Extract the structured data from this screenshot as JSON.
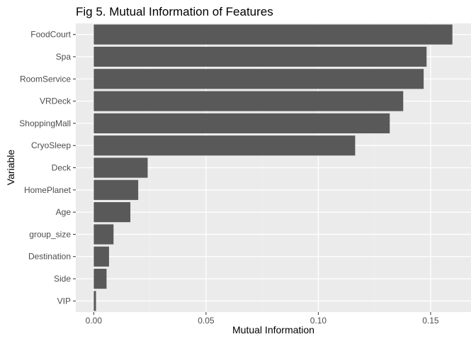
{
  "chart_data": {
    "type": "bar",
    "orientation": "horizontal",
    "title": "Fig 5. Mutual Information of Features",
    "xlabel": "Mutual Information",
    "ylabel": "Variable",
    "categories": [
      "FoodCourt",
      "Spa",
      "RoomService",
      "VRDeck",
      "ShoppingMall",
      "CryoSleep",
      "Deck",
      "HomePlanet",
      "Age",
      "group_size",
      "Destination",
      "Side",
      "VIP"
    ],
    "values": [
      0.1597,
      0.1482,
      0.1469,
      0.1378,
      0.1318,
      0.1164,
      0.024,
      0.0198,
      0.0163,
      0.0088,
      0.0068,
      0.0057,
      0.001
    ],
    "xlim": [
      -0.008,
      0.168
    ],
    "xticks": [
      0.0,
      0.05,
      0.1,
      0.15
    ],
    "xtick_labels": [
      "0.00",
      "0.05",
      "0.10",
      "0.15"
    ],
    "grid": true,
    "legend": "none",
    "colors": {
      "bar": "#595959",
      "panel": "#ebebeb",
      "grid_major": "#ffffff",
      "grid_minor": "#f2f2f2",
      "axis_text": "#4d4d4d",
      "title": "#000000"
    }
  }
}
